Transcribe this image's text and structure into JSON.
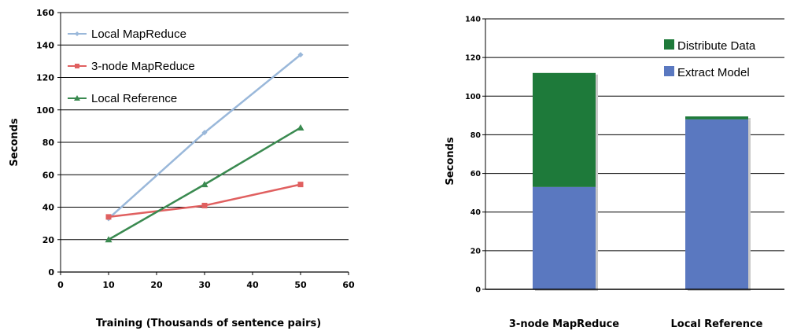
{
  "chart_data": [
    {
      "type": "line",
      "xlabel": "Training (Thousands of sentence pairs)",
      "ylabel": "Seconds",
      "xlim": [
        0,
        60
      ],
      "ylim": [
        0,
        160
      ],
      "xticks": [
        0,
        10,
        20,
        30,
        40,
        50,
        60
      ],
      "yticks": [
        0,
        20,
        40,
        60,
        80,
        100,
        120,
        140,
        160
      ],
      "grid": "horizontal",
      "legend_position": "top-left",
      "x": [
        10,
        30,
        50
      ],
      "series": [
        {
          "name": "Local MapReduce",
          "values": [
            33,
            86,
            134
          ],
          "color": "#9ab8da",
          "marker": "diamond"
        },
        {
          "name": "3-node MapReduce",
          "values": [
            34,
            41,
            54
          ],
          "color": "#e06060",
          "marker": "square"
        },
        {
          "name": "Local Reference",
          "values": [
            20,
            54,
            89
          ],
          "color": "#3a8a50",
          "marker": "triangle"
        }
      ]
    },
    {
      "type": "bar",
      "stacked": true,
      "xlabel": "",
      "ylabel": "Seconds",
      "ylim": [
        0,
        140
      ],
      "yticks": [
        0,
        20,
        40,
        60,
        80,
        100,
        120,
        140
      ],
      "grid": "horizontal",
      "legend_position": "top-right",
      "categories": [
        "3-node MapReduce",
        "Local Reference"
      ],
      "series": [
        {
          "name": "Extract Model",
          "values": [
            53,
            88
          ],
          "color": "#5a78c0"
        },
        {
          "name": "Distribute Data",
          "values": [
            59,
            1.5
          ],
          "color": "#1e7a3a"
        }
      ],
      "legend_order": [
        "Distribute Data",
        "Extract Model"
      ]
    }
  ]
}
